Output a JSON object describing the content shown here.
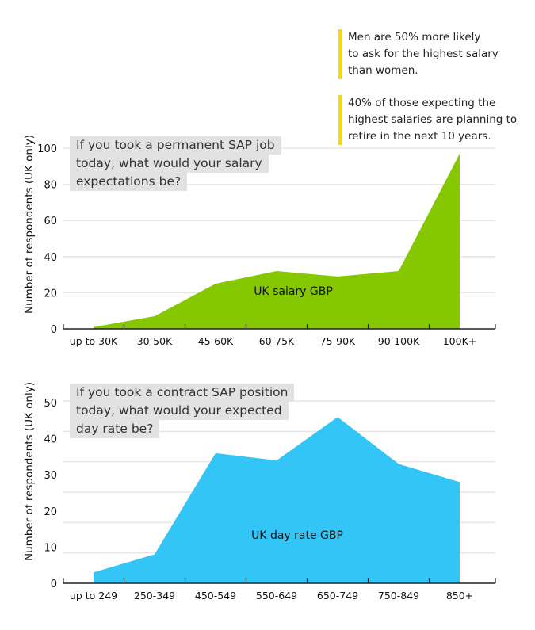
{
  "notes": [
    [
      "Men are 50% more likely",
      "to ask for the highest salary",
      "than women."
    ],
    [
      "40% of those expecting the",
      "highest salaries are planning to",
      "retire in the next 10 years."
    ]
  ],
  "chart_data": [
    {
      "type": "area",
      "question": [
        "If you took a permanent SAP job",
        "today, what would your salary",
        "expectations be?"
      ],
      "ylabel": "Number of respondents (UK only)",
      "series": [
        {
          "name": "UK salary GBP",
          "values": [
            1,
            7,
            25,
            32,
            29,
            32,
            97
          ]
        }
      ],
      "categories": [
        "up to 30K",
        "30-50K",
        "45-60K",
        "60-75K",
        "75-90K",
        "90-100K",
        "100K+"
      ],
      "yticks": [
        0,
        20,
        40,
        60,
        80,
        100
      ],
      "ylim": [
        0,
        100
      ],
      "color": "#86c800",
      "grid": true
    },
    {
      "type": "area",
      "question": [
        "If you took a contract SAP position",
        "today, what would your expected",
        "day rate be?"
      ],
      "ylabel": "Number of respondents (UK only)",
      "series": [
        {
          "name": "UK day rate GBP",
          "values": [
            3,
            8,
            36,
            34,
            46,
            33,
            28
          ]
        }
      ],
      "categories": [
        "up to 249",
        "250-349",
        "450-549",
        "550-649",
        "650-749",
        "750-849",
        "850+"
      ],
      "yticks": [
        0,
        10,
        20,
        30,
        40,
        50
      ],
      "ylim": [
        0,
        50
      ],
      "color": "#33c5f5",
      "grid": true
    }
  ]
}
